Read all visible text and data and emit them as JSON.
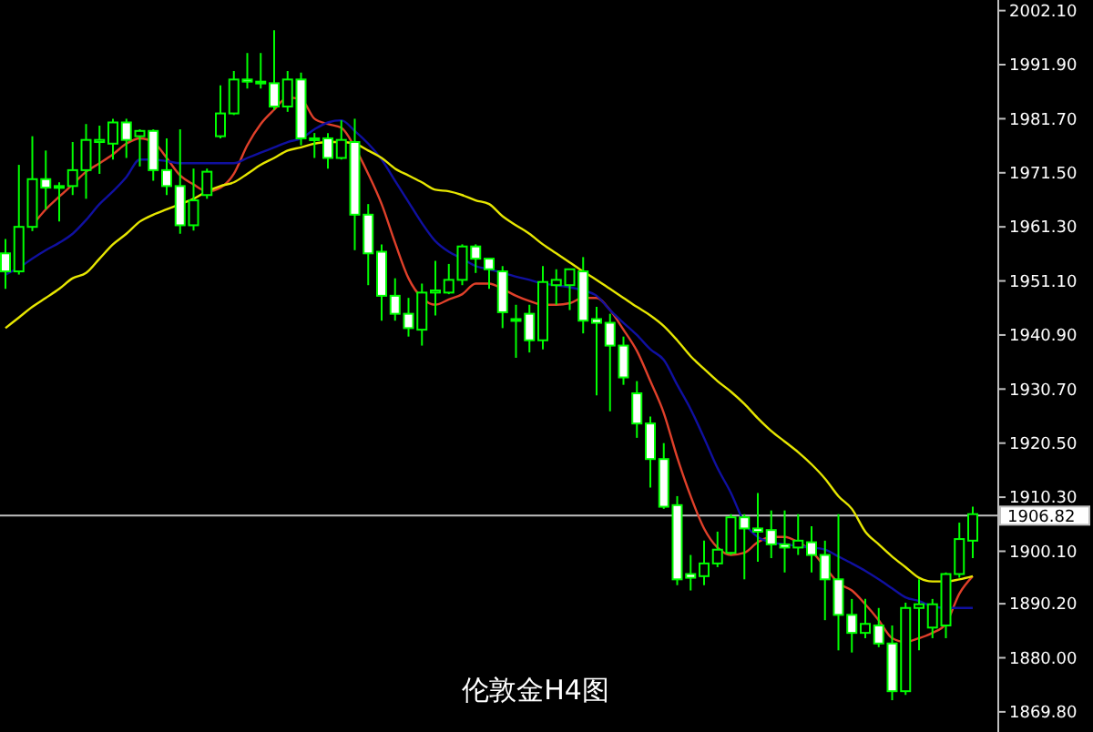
{
  "chart_data": {
    "type": "candlestick",
    "title": "伦敦金H4图",
    "color": "#00ff00",
    "categories": [
      null,
      null,
      null,
      null,
      null,
      null,
      null,
      null,
      null,
      null,
      null,
      null,
      null,
      null,
      null,
      null,
      null,
      null,
      null,
      null,
      null,
      null,
      null,
      null,
      null,
      null,
      null,
      null,
      null,
      null,
      null,
      null,
      null,
      null,
      null,
      null,
      null,
      null,
      null,
      null,
      null,
      null,
      null,
      null,
      null,
      null,
      null,
      null,
      null,
      null,
      null,
      null,
      null,
      null,
      null,
      null,
      null,
      null,
      null,
      null,
      null,
      null,
      null,
      null,
      null,
      null,
      null,
      null,
      null,
      null,
      null,
      null,
      null
    ],
    "ohlc": [
      [
        1956.3,
        1959.0,
        1949.6,
        1952.9
      ],
      [
        1952.9,
        1973.0,
        1952.3,
        1961.3
      ],
      [
        1961.3,
        1978.4,
        1960.5,
        1970.3
      ],
      [
        1970.3,
        1975.7,
        1964.6,
        1968.7
      ],
      [
        1969.0,
        1969.7,
        1962.3,
        1968.7
      ],
      [
        1969.0,
        1977.3,
        1967.3,
        1972.0
      ],
      [
        1972.0,
        1980.7,
        1966.6,
        1977.7
      ],
      [
        1977.3,
        1980.4,
        1971.3,
        1977.7
      ],
      [
        1977.0,
        1981.7,
        1974.0,
        1981.0
      ],
      [
        1981.0,
        1981.7,
        1974.3,
        1977.7
      ],
      [
        1978.4,
        1979.7,
        1972.7,
        1979.4
      ],
      [
        1979.4,
        1979.7,
        1970.0,
        1972.0
      ],
      [
        1972.0,
        1978.0,
        1967.3,
        1969.0
      ],
      [
        1969.0,
        1979.7,
        1960.0,
        1961.6
      ],
      [
        1961.6,
        1972.3,
        1960.6,
        1966.3
      ],
      [
        1967.3,
        1972.3,
        1966.6,
        1971.7
      ],
      [
        1978.4,
        1988.0,
        1978.0,
        1982.7
      ],
      [
        1982.7,
        1990.7,
        1982.4,
        1989.1
      ],
      [
        1989.1,
        1994.1,
        1987.4,
        1988.7
      ],
      [
        1988.7,
        1994.1,
        1987.4,
        1988.4
      ],
      [
        1988.4,
        1998.4,
        1983.4,
        1984.0
      ],
      [
        1984.0,
        1990.7,
        1983.0,
        1989.1
      ],
      [
        1989.1,
        1990.4,
        1976.7,
        1978.0
      ],
      [
        1978.0,
        1979.0,
        1974.3,
        1977.7
      ],
      [
        1978.0,
        1979.0,
        1972.3,
        1974.3
      ],
      [
        1974.3,
        1981.4,
        1974.0,
        1977.7
      ],
      [
        1977.3,
        1981.7,
        1956.9,
        1963.6
      ],
      [
        1963.6,
        1965.6,
        1950.3,
        1956.3
      ],
      [
        1956.6,
        1958.0,
        1943.6,
        1948.3
      ],
      [
        1948.3,
        1951.6,
        1943.6,
        1944.9
      ],
      [
        1944.9,
        1947.9,
        1940.6,
        1942.2
      ],
      [
        1941.9,
        1950.6,
        1938.9,
        1948.9
      ],
      [
        1948.9,
        1954.9,
        1944.6,
        1949.3
      ],
      [
        1948.9,
        1954.3,
        1948.6,
        1951.3
      ],
      [
        1951.3,
        1958.0,
        1950.3,
        1957.6
      ],
      [
        1957.6,
        1958.0,
        1952.6,
        1955.3
      ],
      [
        1955.3,
        1955.3,
        1949.6,
        1953.3
      ],
      [
        1952.9,
        1953.9,
        1942.2,
        1945.2
      ],
      [
        1943.9,
        1946.6,
        1936.6,
        1943.6
      ],
      [
        1944.9,
        1946.6,
        1937.6,
        1939.9
      ],
      [
        1939.9,
        1953.9,
        1938.2,
        1950.9
      ],
      [
        1950.3,
        1953.3,
        1946.6,
        1951.3
      ],
      [
        1950.3,
        1953.3,
        1945.6,
        1953.3
      ],
      [
        1952.9,
        1955.6,
        1941.2,
        1943.6
      ],
      [
        1943.9,
        1946.2,
        1929.5,
        1943.2
      ],
      [
        1943.2,
        1944.9,
        1926.5,
        1938.9
      ],
      [
        1938.9,
        1940.6,
        1931.5,
        1932.9
      ],
      [
        1929.9,
        1932.2,
        1921.5,
        1924.2
      ],
      [
        1924.2,
        1925.5,
        1912.1,
        1917.5
      ],
      [
        1917.5,
        1920.5,
        1908.1,
        1908.5
      ],
      [
        1908.8,
        1910.5,
        1893.7,
        1894.8
      ],
      [
        1895.8,
        1899.4,
        1892.7,
        1895.1
      ],
      [
        1895.4,
        1902.1,
        1893.7,
        1897.8
      ],
      [
        1897.8,
        1903.8,
        1897.1,
        1900.4
      ],
      [
        1899.8,
        1907.1,
        1899.4,
        1906.5
      ],
      [
        1906.5,
        1907.1,
        1894.8,
        1904.4
      ],
      [
        1904.4,
        1911.1,
        1898.1,
        1903.8
      ],
      [
        1904.1,
        1907.8,
        1898.8,
        1901.4
      ],
      [
        1901.4,
        1907.8,
        1896.1,
        1900.8
      ],
      [
        1900.8,
        1907.1,
        1899.4,
        1902.1
      ],
      [
        1901.8,
        1904.8,
        1896.1,
        1899.4
      ],
      [
        1899.4,
        1902.1,
        1887.1,
        1894.8
      ],
      [
        1894.8,
        1907.1,
        1881.4,
        1888.1
      ],
      [
        1888.1,
        1891.1,
        1881.0,
        1884.7
      ],
      [
        1884.7,
        1891.1,
        1883.7,
        1886.4
      ],
      [
        1886.1,
        1889.4,
        1882.0,
        1882.7
      ],
      [
        1882.7,
        1886.1,
        1872.0,
        1873.7
      ],
      [
        1873.7,
        1890.4,
        1873.0,
        1889.4
      ],
      [
        1889.4,
        1894.8,
        1881.4,
        1890.1
      ],
      [
        1885.7,
        1891.1,
        1883.7,
        1890.1
      ],
      [
        1886.1,
        1896.1,
        1883.7,
        1895.8
      ],
      [
        1895.8,
        1905.5,
        1895.1,
        1902.4
      ],
      [
        1902.1,
        1908.5,
        1898.8,
        1907.1
      ]
    ],
    "series": [
      {
        "type": "line",
        "color": "#e0402a",
        "values": [
          null,
          null,
          1961.6,
          1964.6,
          1967.0,
          1969.3,
          1971.7,
          1973.3,
          1975.0,
          1977.0,
          1978.0,
          1977.3,
          1974.3,
          1971.0,
          1969.3,
          1968.0,
          1968.7,
          1971.3,
          1976.7,
          1980.7,
          1983.4,
          1985.7,
          1985.4,
          1981.7,
          1980.7,
          1980.0,
          1976.3,
          1971.3,
          1965.6,
          1958.3,
          1951.6,
          1947.9,
          1946.6,
          1947.6,
          1948.6,
          1950.6,
          1950.6,
          1949.6,
          1948.3,
          1947.3,
          1946.6,
          1946.6,
          1946.9,
          1947.9,
          1947.9,
          1945.6,
          1941.9,
          1937.9,
          1932.2,
          1926.2,
          1917.8,
          1910.5,
          1904.4,
          1900.8,
          1899.4,
          1899.8,
          1901.8,
          1902.8,
          1902.8,
          1901.8,
          1900.1,
          1897.1,
          1894.1,
          1892.7,
          1890.1,
          1887.1,
          1883.7,
          1883.0,
          1883.7,
          1884.7,
          1886.4,
          1892.1,
          1895.4
        ]
      },
      {
        "type": "line",
        "color": "#1010a0",
        "values": [
          1952.3,
          1953.6,
          1955.3,
          1956.9,
          1958.3,
          1960.0,
          1962.6,
          1965.6,
          1968.0,
          1970.7,
          1974.0,
          1974.0,
          1973.7,
          1973.3,
          1973.3,
          1973.3,
          1973.3,
          1973.3,
          1974.3,
          1975.3,
          1976.3,
          1977.3,
          1978.0,
          1979.7,
          1981.0,
          1981.4,
          1979.4,
          1977.0,
          1974.0,
          1970.0,
          1966.0,
          1962.0,
          1958.6,
          1956.6,
          1955.3,
          1953.9,
          1953.3,
          1952.6,
          1951.9,
          1951.3,
          1950.6,
          1950.3,
          1949.9,
          1949.3,
          1948.3,
          1945.6,
          1943.2,
          1940.9,
          1938.2,
          1936.2,
          1931.5,
          1926.9,
          1921.5,
          1915.8,
          1911.1,
          1905.5,
          1902.8,
          1901.8,
          1901.4,
          1901.1,
          1900.8,
          1900.4,
          1899.1,
          1897.8,
          1896.4,
          1894.8,
          1893.1,
          1891.4,
          1890.7,
          1889.7,
          1889.4,
          1889.4,
          1889.4
        ]
      },
      {
        "type": "line",
        "color": "#e6e600",
        "values": [
          1942.2,
          1944.2,
          1946.2,
          1947.9,
          1949.6,
          1951.6,
          1952.6,
          1955.3,
          1958.0,
          1960.0,
          1962.3,
          1963.6,
          1964.6,
          1965.6,
          1966.6,
          1968.0,
          1969.0,
          1969.7,
          1971.3,
          1973.0,
          1974.3,
          1975.7,
          1976.3,
          1977.0,
          1977.3,
          1977.3,
          1977.0,
          1975.7,
          1974.3,
          1972.3,
          1971.0,
          1969.7,
          1968.3,
          1968.0,
          1967.3,
          1966.3,
          1965.6,
          1963.3,
          1961.6,
          1960.0,
          1958.0,
          1956.3,
          1954.6,
          1952.9,
          1951.3,
          1949.6,
          1947.9,
          1946.2,
          1944.6,
          1942.6,
          1939.9,
          1936.9,
          1934.5,
          1932.2,
          1930.2,
          1927.9,
          1925.2,
          1922.8,
          1920.8,
          1918.8,
          1916.5,
          1913.8,
          1910.5,
          1908.1,
          1903.8,
          1901.4,
          1899.1,
          1897.1,
          1895.1,
          1894.4,
          1894.4,
          1894.8,
          1895.4
        ]
      }
    ],
    "ylim": [
      1866,
      2004.1
    ],
    "yticks": [
      {
        "value": 2002.1,
        "label": "2002.10"
      },
      {
        "value": 1991.9,
        "label": "1991.90"
      },
      {
        "value": 1981.7,
        "label": "1981.70"
      },
      {
        "value": 1971.5,
        "label": "1971.50"
      },
      {
        "value": 1961.3,
        "label": "1961.30"
      },
      {
        "value": 1951.1,
        "label": "1951.10"
      },
      {
        "value": 1940.9,
        "label": "1940.90"
      },
      {
        "value": 1930.7,
        "label": "1930.70"
      },
      {
        "value": 1920.5,
        "label": "1920.50"
      },
      {
        "value": 1910.3,
        "label": "1910.30"
      },
      {
        "value": 1900.1,
        "label": "1900.10"
      },
      {
        "value": 1890.2,
        "label": "1890.20"
      },
      {
        "value": 1880.0,
        "label": "1880.00"
      },
      {
        "value": 1869.8,
        "label": "1869.80"
      }
    ],
    "ref_lines": [
      {
        "axis": "y",
        "value": 1906.82,
        "label": "1906.82",
        "color": "#c0c0c0"
      }
    ],
    "tick_labels": "y"
  }
}
